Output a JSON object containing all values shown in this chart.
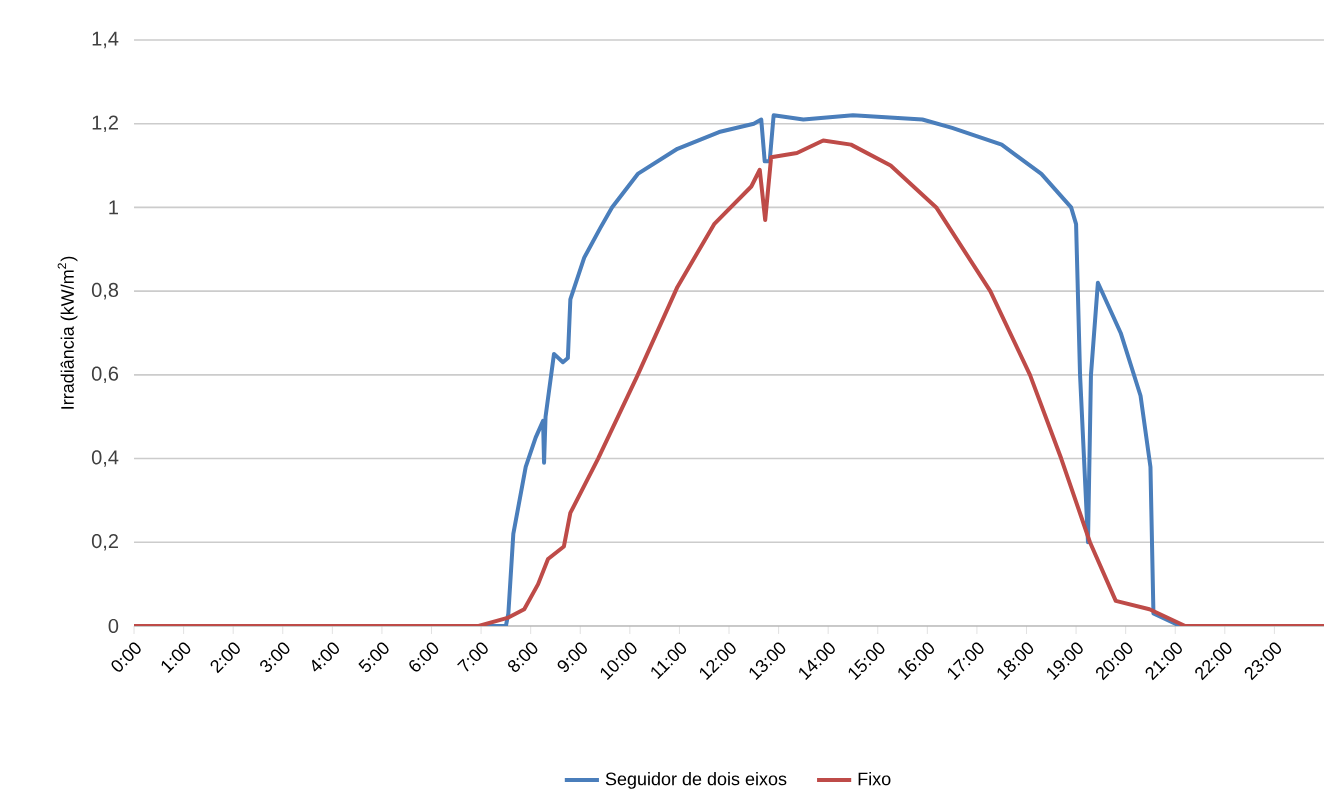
{
  "chart_data": {
    "type": "line",
    "ylabel": "Irradiância (kW/m$^{2}$)",
    "xlim": [
      0,
      24
    ],
    "ylim": [
      0,
      1.4
    ],
    "xticks": [
      {
        "value": 0,
        "label": "0:00"
      },
      {
        "value": 1,
        "label": "1:00"
      },
      {
        "value": 2,
        "label": "2:00"
      },
      {
        "value": 3,
        "label": "3:00"
      },
      {
        "value": 4,
        "label": "4:00"
      },
      {
        "value": 5,
        "label": "5:00"
      },
      {
        "value": 6,
        "label": "6:00"
      },
      {
        "value": 7,
        "label": "7:00"
      },
      {
        "value": 8,
        "label": "8:00"
      },
      {
        "value": 9,
        "label": "9:00"
      },
      {
        "value": 10,
        "label": "10:00"
      },
      {
        "value": 11,
        "label": "11:00"
      },
      {
        "value": 12,
        "label": "12:00"
      },
      {
        "value": 13,
        "label": "13:00"
      },
      {
        "value": 14,
        "label": "14:00"
      },
      {
        "value": 15,
        "label": "15:00"
      },
      {
        "value": 16,
        "label": "16:00"
      },
      {
        "value": 17,
        "label": "17:00"
      },
      {
        "value": 18,
        "label": "18:00"
      },
      {
        "value": 19,
        "label": "19:00"
      },
      {
        "value": 20,
        "label": "20:00"
      },
      {
        "value": 21,
        "label": "21:00"
      },
      {
        "value": 22,
        "label": "22:00"
      },
      {
        "value": 23,
        "label": "23:00"
      }
    ],
    "yticks": [
      0,
      {
        "value": 0.2,
        "label": "0,2"
      },
      {
        "value": 0.4,
        "label": "0,4"
      },
      {
        "value": 0.6,
        "label": "0,6"
      },
      {
        "value": 0.8,
        "label": "0,8"
      },
      1,
      {
        "value": 1.2,
        "label": "1,2"
      },
      {
        "value": 1.4,
        "label": "1,4"
      }
    ],
    "grid": "y",
    "legend": "bottom",
    "marker": "none",
    "line_style": "solid",
    "series": [
      {
        "name": "Seguidor de dois eixos",
        "color": "#4a7ebb",
        "x": [
          0,
          7.5,
          7.55,
          7.65,
          7.9,
          8.1,
          8.25,
          8.27,
          8.3,
          8.47,
          8.65,
          8.75,
          8.8,
          9.08,
          9.4,
          9.64,
          10.16,
          10.96,
          11.8,
          12.5,
          12.65,
          12.72,
          12.82,
          12.9,
          13.5,
          14.5,
          15.9,
          16.5,
          17.5,
          18.3,
          18.9,
          19.0,
          19.08,
          19.24,
          19.3,
          19.44,
          19.9,
          20.3,
          20.5,
          20.56,
          21.1,
          24
        ],
        "values": [
          0,
          0,
          0.03,
          0.22,
          0.38,
          0.45,
          0.49,
          0.39,
          0.5,
          0.65,
          0.63,
          0.64,
          0.78,
          0.88,
          0.95,
          1.0,
          1.08,
          1.14,
          1.18,
          1.2,
          1.21,
          1.11,
          1.11,
          1.22,
          1.21,
          1.22,
          1.21,
          1.19,
          1.15,
          1.08,
          1.0,
          0.96,
          0.6,
          0.2,
          0.6,
          0.82,
          0.7,
          0.55,
          0.38,
          0.03,
          0,
          0
        ]
      },
      {
        "name": "Fixo",
        "color": "#be4b48",
        "x": [
          0,
          6.95,
          7.55,
          7.87,
          8.15,
          8.35,
          8.67,
          8.8,
          9.36,
          10.16,
          10.96,
          11.7,
          12.45,
          12.62,
          12.73,
          12.85,
          13.37,
          13.9,
          14.46,
          15.26,
          16.18,
          17.27,
          18.07,
          18.7,
          19.28,
          19.8,
          20.48,
          21.2,
          24
        ],
        "values": [
          0,
          0,
          0.02,
          0.04,
          0.1,
          0.16,
          0.19,
          0.27,
          0.4,
          0.6,
          0.81,
          0.96,
          1.05,
          1.09,
          0.97,
          1.12,
          1.13,
          1.16,
          1.15,
          1.1,
          1.0,
          0.8,
          0.6,
          0.4,
          0.2,
          0.06,
          0.04,
          0,
          0
        ]
      }
    ]
  }
}
